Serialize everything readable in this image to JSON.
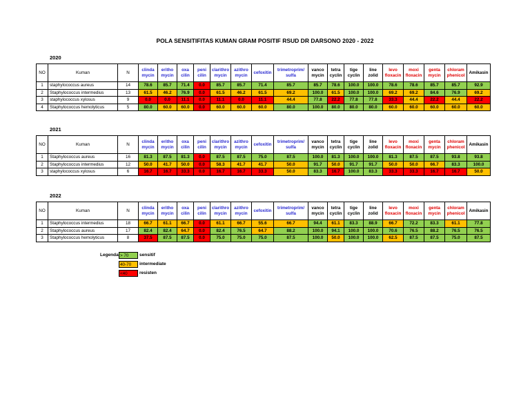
{
  "title": "POLA SENSITIFITAS KUMAN GRAM POSITIF RSUD DR DARSONO 2020 - 2022",
  "columns": {
    "no": "NO",
    "kuman": "Kuman",
    "n": "N",
    "drugs": [
      [
        "clinda",
        "mycin"
      ],
      [
        "eritho",
        "mycin"
      ],
      [
        "oxa",
        "cilin"
      ],
      [
        "peni",
        "cilin"
      ],
      [
        "clarithro",
        "mycin"
      ],
      [
        "azithro",
        "mycin"
      ],
      [
        "cefoxitin"
      ],
      [
        "trimetroprim/",
        "sulfa"
      ],
      [
        "vanco",
        "mycin"
      ],
      [
        "tetra",
        "cyclin"
      ],
      [
        "tige",
        "cyclin"
      ],
      [
        "line",
        "zolid"
      ],
      [
        "levo",
        "floxacin"
      ],
      [
        "moxi",
        "floxacin"
      ],
      [
        "genta",
        "mycin"
      ],
      [
        "chloram",
        "phenicol"
      ],
      [
        "Amikasin"
      ]
    ],
    "drug_colors": [
      "#2a2ad0",
      "#2a2ad0",
      "#2a2ad0",
      "#2a2ad0",
      "#2a2ad0",
      "#2a2ad0",
      "#2a2ad0",
      "#2a2ad0",
      "#000000",
      "#000000",
      "#000000",
      "#000000",
      "#e00000",
      "#e00000",
      "#e00000",
      "#e00000",
      "#000000"
    ]
  },
  "tables": [
    {
      "year": "2020",
      "rows": [
        [
          "1",
          "staphylococcus aureus",
          "14",
          [
            "78.6",
            "85.7",
            "71.4",
            "0.0",
            "85.7",
            "85.7",
            "71.4",
            "85.7",
            "85.7",
            "78.6",
            "100.0",
            "100.0",
            "78.6",
            "78.6",
            "85.7",
            "85.7",
            "92.9"
          ]
        ],
        [
          "2",
          "Staphylococcus intermedius",
          "13",
          [
            "61.5",
            "46.2",
            "76.9",
            "0.0",
            "61.5",
            "46.2",
            "61.5",
            "69.2",
            "100.0",
            "61.5",
            "100.0",
            "100.0",
            "69.2",
            "69.2",
            "84.6",
            "76.9",
            "69.2"
          ]
        ],
        [
          "3",
          "staphylococcus xylosus",
          "9",
          [
            "0.0",
            "0.0",
            "11.1",
            "0.0",
            "11.1",
            "0.0",
            "11.1",
            "44.4",
            "77.8",
            "22.2",
            "77.8",
            "77.8",
            "33.3",
            "44.4",
            "22.2",
            "44.4",
            "22.2"
          ]
        ],
        [
          "4",
          "Staphylococcus hemolyticus",
          "5",
          [
            "80.0",
            "60.0",
            "60.0",
            "0.0",
            "60.0",
            "60.0",
            "60.0",
            "80.0",
            "100.0",
            "80.0",
            "80.0",
            "80.0",
            "60.0",
            "60.0",
            "60.0",
            "60.0",
            "60.0"
          ]
        ]
      ]
    },
    {
      "year": "2021",
      "rows": [
        [
          "1",
          "Staphylococcus aureus",
          "16",
          [
            "81.3",
            "87.5",
            "81.3",
            "0.0",
            "87.5",
            "87.5",
            "75.0",
            "87.5",
            "100.0",
            "81.3",
            "100.0",
            "100.0",
            "81.3",
            "87.5",
            "87.5",
            "93.8",
            "93.8"
          ]
        ],
        [
          "2",
          "Staphylococcus intermedius",
          "12",
          [
            "50.0",
            "41.7",
            "50.0",
            "0.0",
            "58.3",
            "41.7",
            "41.7",
            "50.0",
            "91.7",
            "50.0",
            "91.7",
            "91.7",
            "50.0",
            "50.0",
            "66.7",
            "83.3",
            "100.0"
          ]
        ],
        [
          "3",
          "staphylococcus xylosus",
          "6",
          [
            "16.7",
            "16.7",
            "33.3",
            "0.0",
            "16.7",
            "16.7",
            "33.3",
            "50.0",
            "83.3",
            "16.7",
            "100.0",
            "83.3",
            "33.3",
            "33.3",
            "16.7",
            "16.7",
            "50.0"
          ]
        ]
      ]
    },
    {
      "year": "2022",
      "rows": [
        [
          "1",
          "Staphylococcus intermedius",
          "18",
          [
            "66.7",
            "61.1",
            "66.7",
            "0.0",
            "61.1",
            "66.7",
            "55.6",
            "66.7",
            "94.4",
            "61.1",
            "83.3",
            "88.9",
            "66.7",
            "72.2",
            "83.3",
            "61.1",
            "77.8"
          ]
        ],
        [
          "2",
          "Staphylococcus aureus",
          "17",
          [
            "82.4",
            "82.4",
            "64.7",
            "0.0",
            "82.4",
            "76.5",
            "64.7",
            "88.2",
            "100.0",
            "94.1",
            "100.0",
            "100.0",
            "70.6",
            "76.5",
            "88.2",
            "76.5",
            "76.5"
          ]
        ],
        [
          "3",
          "Staphylococcus hemolyticus",
          "8",
          [
            "37.5",
            "87.5",
            "87.5",
            "0.0",
            "75.0",
            "75.0",
            "75.0",
            "87.5",
            "100.0",
            "50.0",
            "100.0",
            "100.0",
            "62.5",
            "87.5",
            "87.5",
            "75.0",
            "87.5"
          ]
        ]
      ]
    }
  ],
  "legend": {
    "title": "Legenda :",
    "items": [
      {
        "label": "> 70",
        "text": "sensitif",
        "color": "#92d050"
      },
      {
        "label": "40-70",
        "text": "intermediate",
        "color": "#ffc000"
      },
      {
        "label": "<40",
        "text": "resisten",
        "color": "#ff0000"
      }
    ]
  }
}
